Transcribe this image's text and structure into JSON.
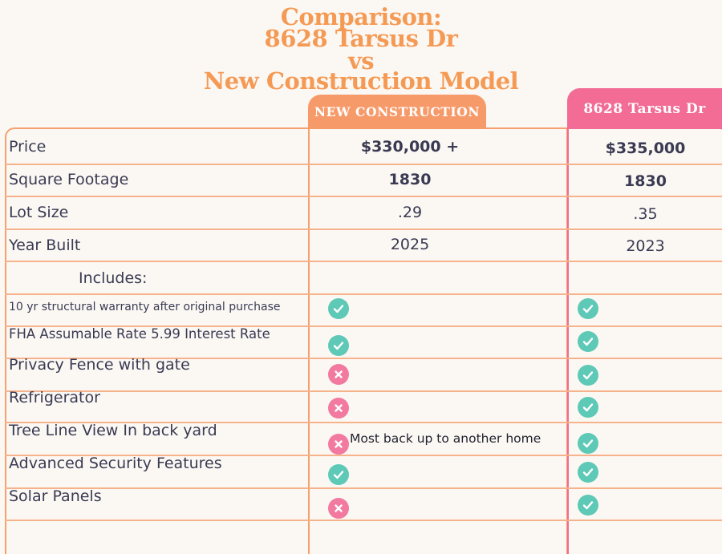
{
  "title": {
    "line1": "Comparison:",
    "line2": "8628 Tarsus Dr",
    "line3": "vs",
    "line4": "New Construction Model"
  },
  "columns": {
    "new_construction": "NEW CONSTRUCTION",
    "tarsus": "8628 Tarsus Dr"
  },
  "rows": {
    "price": {
      "label": "Price",
      "new": "$330,000 +",
      "tarsus": "$335,000"
    },
    "sqft": {
      "label": "Square Footage",
      "new": "1830",
      "tarsus": "1830"
    },
    "lot": {
      "label": "Lot Size",
      "new": ".29",
      "tarsus": ".35"
    },
    "year": {
      "label": "Year Built",
      "new": "2025",
      "tarsus": "2023"
    },
    "includes": {
      "label": "Includes:"
    }
  },
  "features": [
    {
      "label": "10 yr structural warranty after original purchase",
      "new": "check",
      "tarsus": "check"
    },
    {
      "label": "FHA Assumable Rate 5.99 Interest Rate",
      "new": "check",
      "tarsus": "check"
    },
    {
      "label": "Privacy Fence with gate",
      "new": "cross",
      "tarsus": "check"
    },
    {
      "label": "Refrigerator",
      "new": "cross",
      "tarsus": "check"
    },
    {
      "label": "Tree Line View In back yard",
      "new": "cross",
      "tarsus": "check",
      "note": "Most back up to another home"
    },
    {
      "label": "Advanced Security Features",
      "new": "check",
      "tarsus": "check"
    },
    {
      "label": "Solar Panels",
      "new": "cross",
      "tarsus": "check"
    }
  ],
  "icons": {
    "check": "check-circle-icon",
    "cross": "x-circle-icon"
  },
  "colors": {
    "title": "#f59a55",
    "new_tab": "#f79a6a",
    "tarsus_tab": "#f26c96",
    "check": "#5ec9b6",
    "cross": "#f27aa0"
  }
}
